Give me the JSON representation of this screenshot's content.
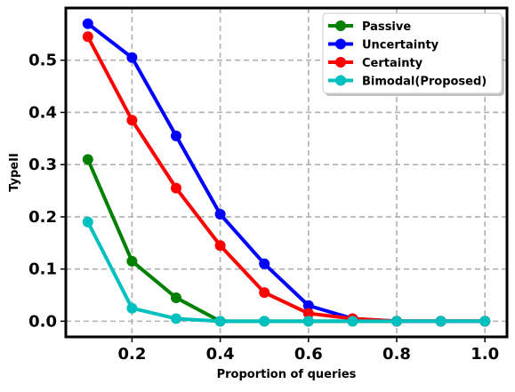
{
  "chart_data": {
    "type": "line",
    "title": "",
    "xlabel": "Proportion of queries",
    "ylabel": "TypeII",
    "xlim": [
      0.05,
      1.05
    ],
    "ylim": [
      -0.03,
      0.6
    ],
    "xticks": [
      0.2,
      0.4,
      0.6,
      0.8,
      1.0
    ],
    "xtick_labels": [
      "0.2",
      "0.4",
      "0.6",
      "0.8",
      "1.0"
    ],
    "yticks": [
      0.0,
      0.1,
      0.2,
      0.3,
      0.4,
      0.5
    ],
    "ytick_labels": [
      "0.0",
      "0.1",
      "0.2",
      "0.3",
      "0.4",
      "0.5"
    ],
    "grid": true,
    "legend_position": "top-right",
    "x": [
      0.1,
      0.2,
      0.3,
      0.4,
      0.5,
      0.6,
      0.7,
      0.8,
      0.9,
      1.0
    ],
    "series": [
      {
        "name": "Passive",
        "color": "#008000",
        "values": [
          0.31,
          0.115,
          0.045,
          0.0,
          0.0,
          0.0,
          0.0,
          0.0,
          0.0,
          0.0
        ]
      },
      {
        "name": "Uncertainty",
        "color": "#0000ff",
        "values": [
          0.57,
          0.505,
          0.355,
          0.205,
          0.11,
          0.03,
          0.005,
          0.0,
          0.0,
          0.0
        ]
      },
      {
        "name": "Certainty",
        "color": "#ff0000",
        "values": [
          0.545,
          0.385,
          0.255,
          0.145,
          0.055,
          0.015,
          0.005,
          0.0,
          0.0,
          0.0
        ]
      },
      {
        "name": "Bimodal(Proposed)",
        "color": "#00bfbf",
        "values": [
          0.19,
          0.025,
          0.005,
          0.0,
          0.0,
          0.0,
          0.0,
          0.0,
          0.0,
          0.0
        ]
      }
    ]
  }
}
